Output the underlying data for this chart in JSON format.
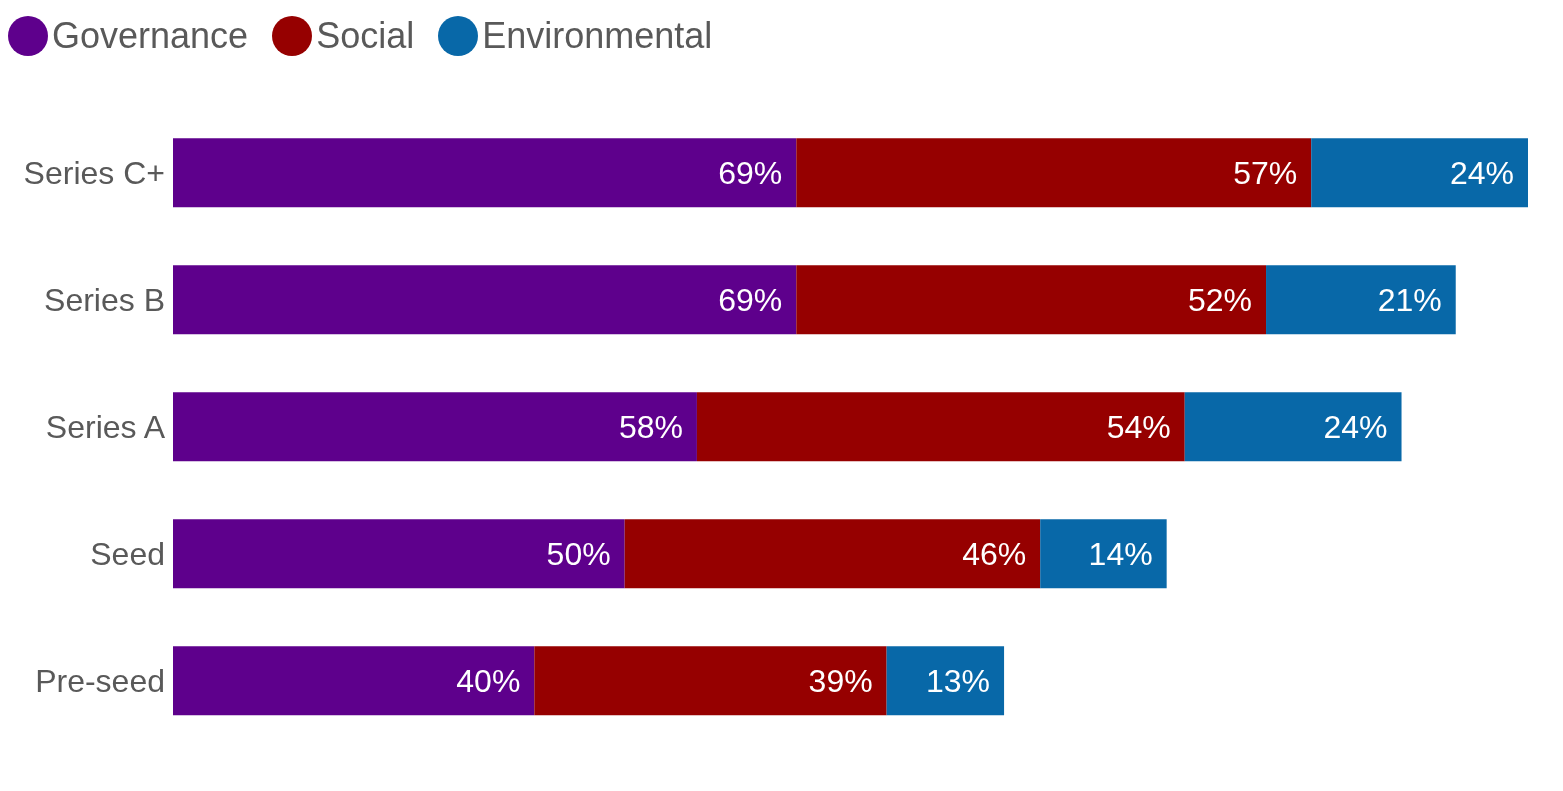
{
  "chart_data": {
    "type": "bar",
    "orientation": "horizontal",
    "stacked": true,
    "legend": "top left",
    "categories": [
      "Series C+",
      "Series B",
      "Series A",
      "Seed",
      "Pre-seed"
    ],
    "series": [
      {
        "name": "Governance",
        "color": "#5e008c",
        "values": [
          69,
          69,
          58,
          50,
          40
        ],
        "value_labels": [
          "69%",
          "69%",
          "58%",
          "50%",
          "40%"
        ]
      },
      {
        "name": "Social",
        "color": "#960000",
        "values": [
          57,
          52,
          54,
          46,
          39
        ],
        "value_labels": [
          "57%",
          "52%",
          "54%",
          "46%",
          "39%"
        ]
      },
      {
        "name": "Environmental",
        "color": "#0868a8",
        "values": [
          24,
          21,
          24,
          14,
          13
        ],
        "value_labels": [
          "24%",
          "21%",
          "24%",
          "14%",
          "13%"
        ]
      }
    ]
  }
}
